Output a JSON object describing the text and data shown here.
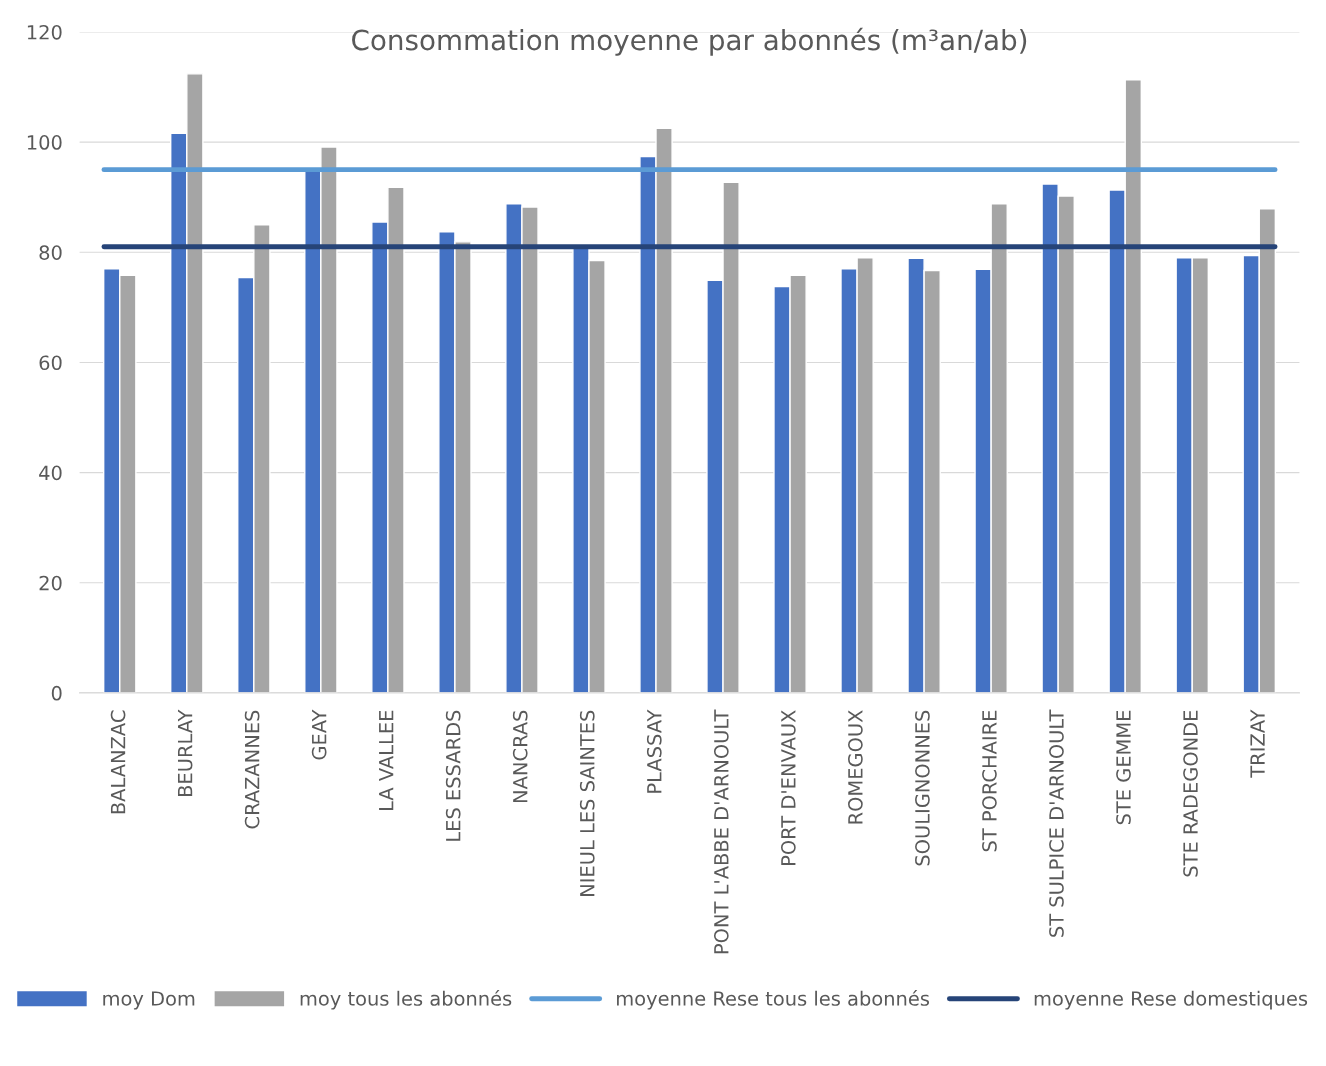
{
  "chart_data": {
    "type": "bar",
    "title": "Consommation moyenne par abonnés (m³an/ab)",
    "categories": [
      "BALANZAC",
      "BEURLAY",
      "CRAZANNES",
      "GEAY",
      "LA VALLEE",
      "LES ESSARDS",
      "NANCRAS",
      "NIEUL LES SAINTES",
      "PLASSAY",
      "PONT L'ABBE D'ARNOULT",
      "PORT D'ENVAUX",
      "ROMEGOUX",
      "SOULIGNONNES",
      "ST PORCHAIRE",
      "ST SULPICE D'ARNOULT",
      "STE GEMME",
      "STE RADEGONDE",
      "TRIZAY"
    ],
    "series": [
      {
        "name": "moy Dom",
        "color": "#4472c4",
        "values": [
          77.0,
          101.6,
          75.4,
          95.3,
          85.5,
          83.7,
          88.8,
          81.2,
          97.4,
          74.9,
          73.8,
          77.0,
          78.9,
          76.9,
          92.4,
          91.3,
          79.0,
          79.4
        ]
      },
      {
        "name": "moy tous les abonnés",
        "color": "#a5a5a5",
        "values": [
          75.8,
          112.4,
          85.0,
          99.1,
          91.8,
          81.9,
          88.2,
          78.5,
          102.5,
          92.7,
          75.8,
          79.0,
          76.7,
          88.8,
          90.2,
          111.3,
          79.0,
          87.9
        ]
      }
    ],
    "ref_lines": [
      {
        "axis": "y",
        "value": 95,
        "label": "moyenne Rese tous les abonnés",
        "color": "#5b9bd5"
      },
      {
        "axis": "y",
        "value": 81,
        "label": "moyenne Rese domestiques",
        "color": "#264478"
      }
    ],
    "ylim": [
      0,
      120
    ],
    "yticks": [
      0,
      20,
      40,
      60,
      80,
      100,
      120
    ],
    "grid": "y",
    "legend": "bottom"
  }
}
